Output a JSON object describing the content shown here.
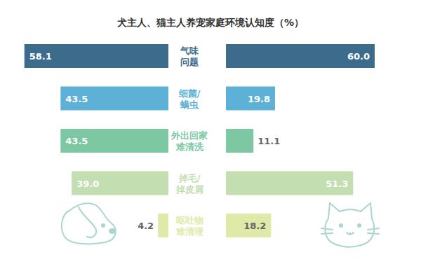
{
  "chart_data": {
    "type": "bar",
    "title": "犬主人、猫主人养宠家庭环境认知度（%）",
    "orientation": "horizontal",
    "categories": [
      "气味\n问题",
      "细菌/\n螨虫",
      "外出回家\n难清洗",
      "掉毛/\n掉皮屑",
      "呕吐物\n难清理"
    ],
    "colors": [
      "#3d6b8c",
      "#5eb1d6",
      "#7dc8a3",
      "#c3deb1",
      "#dfeaa8"
    ],
    "series": [
      {
        "values": [
          58.1,
          43.5,
          43.5,
          39.0,
          4.2
        ],
        "value_labels": [
          "58.1",
          "43.5",
          "43.5",
          "39.0",
          "4.2"
        ]
      },
      {
        "values": [
          60.0,
          19.8,
          11.1,
          51.3,
          18.2
        ],
        "value_labels": [
          "60.0",
          "19.8",
          "11.1",
          "51.3",
          "18.2"
        ]
      }
    ],
    "xlim": [
      0,
      60
    ],
    "data_labels": true,
    "tick_labels": false,
    "grid": false
  }
}
